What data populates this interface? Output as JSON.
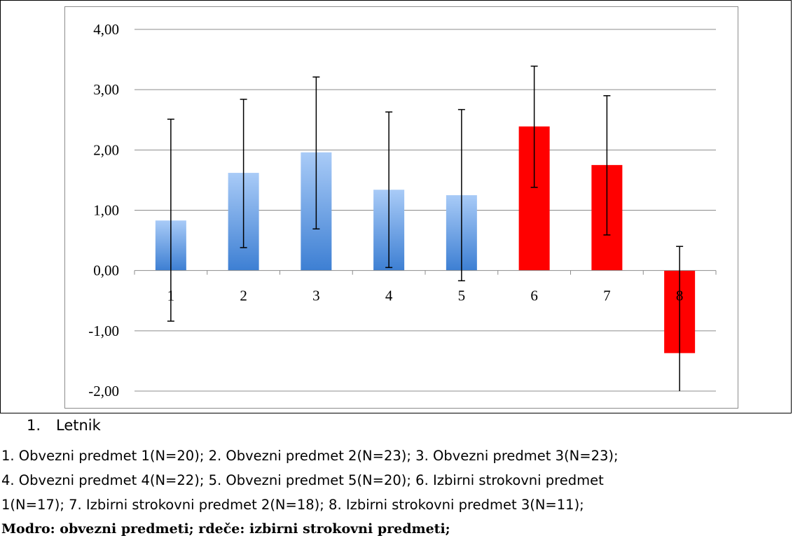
{
  "chart_data": {
    "type": "bar",
    "categories": [
      "1",
      "2",
      "3",
      "4",
      "5",
      "6",
      "7",
      "8"
    ],
    "values": [
      0.83,
      1.62,
      1.96,
      1.34,
      1.25,
      2.39,
      1.75,
      -1.37
    ],
    "error_low": [
      -0.84,
      0.38,
      0.69,
      0.05,
      -0.17,
      1.38,
      0.59,
      -2.0
    ],
    "error_high": [
      2.51,
      2.84,
      3.21,
      2.63,
      2.67,
      3.39,
      2.9,
      0.4
    ],
    "bar_groups": [
      "obvezni",
      "obvezni",
      "obvezni",
      "obvezni",
      "obvezni",
      "izbirni",
      "izbirni",
      "izbirni"
    ],
    "ylim": [
      -2.0,
      4.0
    ],
    "yticks": [
      4.0,
      3.0,
      2.0,
      1.0,
      0.0,
      -1.0,
      -2.0
    ],
    "ytick_labels": [
      "4,00",
      "3,00",
      "2,00",
      "1,00",
      "0,00",
      "-1,00",
      "-2,00"
    ],
    "grid": true,
    "legend": "none",
    "colors": {
      "obvezni_top": "#a9cbf7",
      "obvezni_bottom": "#3d7fd3",
      "izbirni": "#ff0000",
      "gridline": "#8c8c8c",
      "error_bar": "#000000"
    }
  },
  "caption": {
    "number": "1.",
    "heading": "Letnik",
    "line1": "1. Obvezni predmet 1(N=20); 2. Obvezni predmet 2(N=23); 3. Obvezni predmet 3(N=23);",
    "line2": "4. Obvezni predmet 4(N=22); 5. Obvezni predmet 5(N=20); 6. Izbirni strokovni predmet",
    "line3": "1(N=17); 7. Izbirni strokovni predmet 2(N=18); 8. Izbirni strokovni predmet 3(N=11);",
    "line4": "Modro: obvezni predmeti; rdeče: izbirni strokovni predmeti;"
  }
}
